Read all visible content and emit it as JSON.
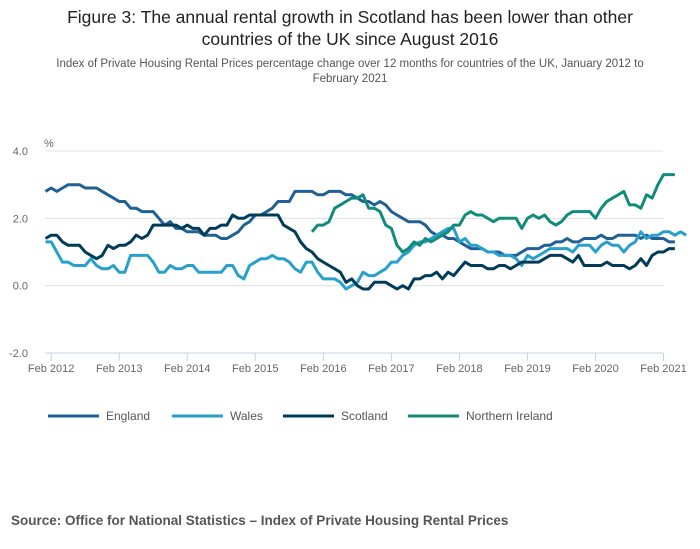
{
  "header": {
    "title_line1": "Figure 3: The annual rental growth in Scotland has been lower than other",
    "title_line2": "countries of the UK since August 2016",
    "subtitle_line1": "Index of Private Housing Rental Prices percentage change over 12 months for countries of the UK, January 2012 to",
    "subtitle_line2": "February 2021"
  },
  "source": "Source: Office for National Statistics – Index of Private Housing Rental Prices",
  "chart_data": {
    "type": "line",
    "title": "Figure 3: The annual rental growth in Scotland has been lower than other countries of the UK since August 2016",
    "subtitle": "Index of Private Housing Rental Prices percentage change over 12 months for countries of the UK, January 2012 to February 2021",
    "ylabel": "%",
    "xlabel": "",
    "x_start": "Jan 2012",
    "x_end": "Feb 2021",
    "x_frequency": "monthly",
    "ylim": [
      -2.0,
      4.0
    ],
    "y_ticks": [
      "4.0",
      "2.0",
      "0.0",
      "-2.0"
    ],
    "y_tick_values": [
      4.0,
      2.0,
      0.0,
      -2.0
    ],
    "x_ticks": [
      "Feb 2012",
      "Feb 2013",
      "Feb 2014",
      "Feb 2015",
      "Feb 2016",
      "Feb 2017",
      "Feb 2018",
      "Feb 2019",
      "Feb 2020",
      "Feb 2021"
    ],
    "x_tick_month_index": [
      1,
      13,
      25,
      37,
      49,
      61,
      73,
      85,
      97,
      109
    ],
    "grid": "horizontal",
    "legend_position": "bottom",
    "series": [
      {
        "name": "England",
        "color": "#206095",
        "start_index": 0,
        "values": [
          2.8,
          2.9,
          2.8,
          2.9,
          3.0,
          3.0,
          3.0,
          2.9,
          2.9,
          2.9,
          2.8,
          2.7,
          2.6,
          2.5,
          2.5,
          2.3,
          2.3,
          2.2,
          2.2,
          2.2,
          2.0,
          1.8,
          1.9,
          1.7,
          1.7,
          1.6,
          1.6,
          1.6,
          1.5,
          1.5,
          1.5,
          1.4,
          1.4,
          1.5,
          1.6,
          1.8,
          1.9,
          2.1,
          2.1,
          2.2,
          2.3,
          2.5,
          2.5,
          2.5,
          2.8,
          2.8,
          2.8,
          2.8,
          2.7,
          2.7,
          2.8,
          2.8,
          2.8,
          2.7,
          2.7,
          2.6,
          2.5,
          2.5,
          2.4,
          2.5,
          2.4,
          2.2,
          2.1,
          2.0,
          1.9,
          1.9,
          1.9,
          1.8,
          1.6,
          1.5,
          1.5,
          1.4,
          1.4,
          1.3,
          1.2,
          1.1,
          1.1,
          1.1,
          1.0,
          1.0,
          1.0,
          0.9,
          0.9,
          0.9,
          1.0,
          1.1,
          1.1,
          1.1,
          1.2,
          1.2,
          1.3,
          1.3,
          1.4,
          1.3,
          1.3,
          1.4,
          1.4,
          1.4,
          1.5,
          1.4,
          1.4,
          1.5,
          1.5,
          1.5,
          1.5,
          1.4,
          1.5,
          1.4,
          1.4,
          1.4,
          1.3,
          1.3
        ]
      },
      {
        "name": "Wales",
        "color": "#27a0cc",
        "start_index": 0,
        "values": [
          1.3,
          1.3,
          1.0,
          0.7,
          0.7,
          0.6,
          0.6,
          0.6,
          0.8,
          0.6,
          0.5,
          0.5,
          0.6,
          0.4,
          0.4,
          0.9,
          0.9,
          0.9,
          0.9,
          0.7,
          0.4,
          0.4,
          0.6,
          0.5,
          0.5,
          0.6,
          0.6,
          0.4,
          0.4,
          0.4,
          0.4,
          0.4,
          0.6,
          0.6,
          0.3,
          0.2,
          0.6,
          0.7,
          0.8,
          0.8,
          0.9,
          0.8,
          0.8,
          0.7,
          0.5,
          0.4,
          0.7,
          0.7,
          0.4,
          0.2,
          0.2,
          0.2,
          0.1,
          -0.1,
          0.0,
          0.1,
          0.4,
          0.3,
          0.3,
          0.4,
          0.5,
          0.7,
          0.7,
          0.9,
          1.0,
          1.2,
          1.3,
          1.3,
          1.4,
          1.5,
          1.6,
          1.7,
          1.7,
          1.3,
          1.4,
          1.2,
          1.2,
          1.1,
          1.0,
          1.0,
          0.9,
          0.9,
          0.9,
          0.8,
          0.6,
          0.9,
          0.8,
          0.9,
          1.0,
          1.1,
          1.1,
          1.1,
          1.1,
          1.0,
          1.2,
          1.2,
          1.2,
          1.0,
          1.2,
          1.3,
          1.2,
          1.2,
          1.0,
          1.2,
          1.3,
          1.6,
          1.4,
          1.5,
          1.5,
          1.6,
          1.6,
          1.5,
          1.6,
          1.5
        ]
      },
      {
        "name": "Scotland",
        "color": "#003c57",
        "start_index": 0,
        "values": [
          1.4,
          1.5,
          1.5,
          1.3,
          1.2,
          1.2,
          1.2,
          1.0,
          0.9,
          0.8,
          0.9,
          1.2,
          1.1,
          1.2,
          1.2,
          1.3,
          1.5,
          1.4,
          1.5,
          1.8,
          1.8,
          1.8,
          1.8,
          1.8,
          1.7,
          1.8,
          1.7,
          1.7,
          1.5,
          1.7,
          1.7,
          1.8,
          1.8,
          2.1,
          2.0,
          2.0,
          2.1,
          2.1,
          2.1,
          2.1,
          2.1,
          2.1,
          1.8,
          1.7,
          1.6,
          1.3,
          1.1,
          1.0,
          0.8,
          0.7,
          0.6,
          0.5,
          0.4,
          0.1,
          0.2,
          0.0,
          -0.1,
          -0.1,
          0.1,
          0.1,
          0.1,
          0.0,
          -0.1,
          0.0,
          -0.1,
          0.2,
          0.2,
          0.3,
          0.3,
          0.4,
          0.2,
          0.4,
          0.3,
          0.5,
          0.7,
          0.6,
          0.6,
          0.6,
          0.5,
          0.5,
          0.6,
          0.6,
          0.5,
          0.6,
          0.7,
          0.7,
          0.7,
          0.7,
          0.8,
          0.9,
          0.9,
          0.9,
          0.8,
          0.7,
          0.9,
          0.6,
          0.6,
          0.6,
          0.6,
          0.7,
          0.6,
          0.6,
          0.6,
          0.5,
          0.6,
          0.8,
          0.6,
          0.9,
          1.0,
          1.0,
          1.1,
          1.1
        ]
      },
      {
        "name": "Northern Ireland",
        "color": "#118c7b",
        "start_index": 47,
        "values": [
          1.6,
          1.8,
          1.8,
          1.9,
          2.3,
          2.4,
          2.5,
          2.6,
          2.6,
          2.7,
          2.3,
          2.3,
          2.2,
          1.8,
          1.7,
          1.2,
          1.0,
          1.1,
          1.3,
          1.2,
          1.4,
          1.3,
          1.4,
          1.5,
          1.6,
          1.8,
          1.8,
          2.1,
          2.2,
          2.1,
          2.1,
          2.0,
          1.9,
          2.0,
          2.0,
          2.0,
          2.0,
          1.7,
          2.0,
          2.1,
          2.0,
          2.1,
          1.9,
          1.8,
          1.9,
          2.1,
          2.2,
          2.2,
          2.2,
          2.2,
          2.0,
          2.3,
          2.5,
          2.6,
          2.7,
          2.8,
          2.4,
          2.4,
          2.3,
          2.7,
          2.6,
          3.0,
          3.3,
          3.3,
          3.3
        ]
      }
    ]
  }
}
